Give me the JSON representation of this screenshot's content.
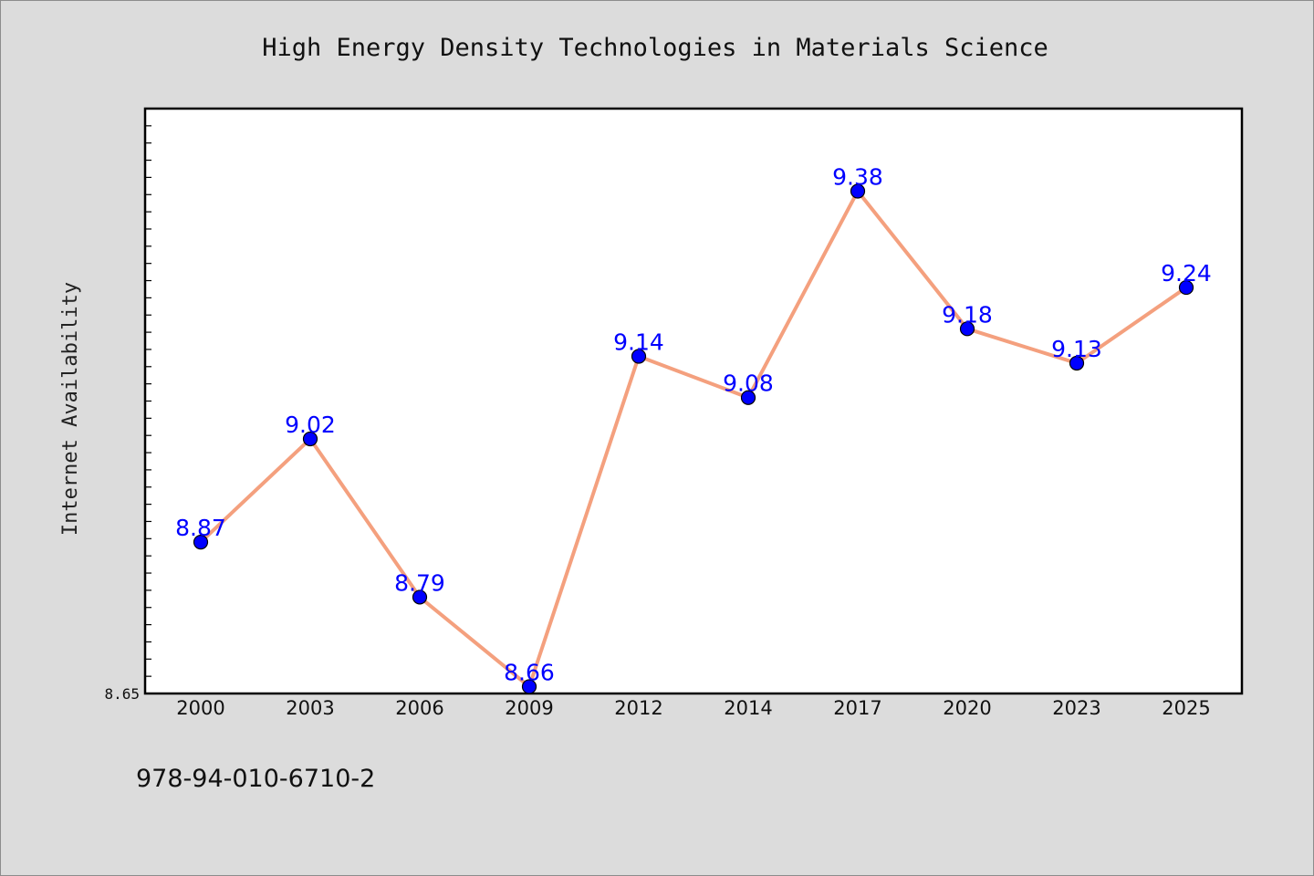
{
  "colors": {
    "background": "#dcdcdc",
    "plot_background": "#ffffff",
    "line": "#f4a07e",
    "marker": "#0000ff",
    "data_label": "#0000ff"
  },
  "isbn": "978-94-010-6710-2",
  "chart_data": {
    "type": "line",
    "title": "High Energy Density Technologies in Materials Science",
    "xlabel": "",
    "ylabel": "Internet Availability",
    "categories": [
      "2000",
      "2003",
      "2006",
      "2009",
      "2012",
      "2014",
      "2017",
      "2020",
      "2023",
      "2025"
    ],
    "series": [
      {
        "values": [
          8.87,
          9.02,
          8.79,
          8.66,
          9.14,
          9.08,
          9.38,
          9.18,
          9.13,
          9.24
        ],
        "data_labels": [
          "8.87",
          "9.02",
          "8.79",
          "8.66",
          "9.14",
          "9.08",
          "9.38",
          "9.18",
          "9.13",
          "9.24"
        ]
      }
    ],
    "yticks": [
      "8.65"
    ],
    "ylim": [
      8.65,
      9.5
    ],
    "grid": false,
    "legend": "none"
  }
}
